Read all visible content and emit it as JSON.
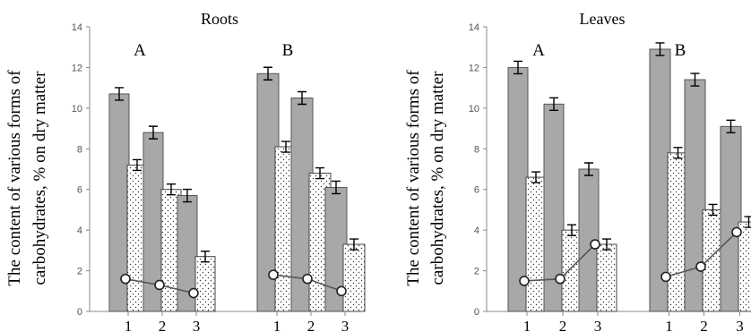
{
  "chart_data": [
    {
      "type": "bar",
      "title": "Roots",
      "ylabel": [
        "The content of various forms of",
        "carbohydrates, % on dry matter"
      ],
      "ylim": [
        0,
        14
      ],
      "yticks": [
        "0",
        "2",
        "4",
        "6",
        "8",
        "10",
        "12",
        "14"
      ],
      "groups": [
        {
          "label": "A",
          "categories": [
            "1",
            "2",
            "3"
          ],
          "gray": [
            10.7,
            8.8,
            5.7
          ],
          "dotted": [
            7.2,
            6.0,
            2.7
          ],
          "line": [
            1.6,
            1.3,
            0.9
          ]
        },
        {
          "label": "B",
          "categories": [
            "1",
            "2",
            "3"
          ],
          "gray": [
            11.7,
            10.5,
            6.1
          ],
          "dotted": [
            8.1,
            6.8,
            3.3
          ],
          "line": [
            1.8,
            1.6,
            1.0
          ]
        }
      ],
      "colors": {
        "gray": "#a8a8a8",
        "dotted": "#ffffff",
        "line": "#555555"
      }
    },
    {
      "type": "bar",
      "title": "Leaves",
      "ylabel": [
        "The content of various forms of",
        "carbohydrates, % on dry matter"
      ],
      "ylim": [
        0,
        14
      ],
      "yticks": [
        "0",
        "2",
        "4",
        "6",
        "8",
        "10",
        "12",
        "14"
      ],
      "groups": [
        {
          "label": "A",
          "categories": [
            "1",
            "2",
            "3"
          ],
          "gray": [
            12.0,
            10.2,
            7.0
          ],
          "dotted": [
            6.6,
            4.0,
            3.3
          ],
          "line": [
            1.5,
            1.6,
            3.3
          ]
        },
        {
          "label": "B",
          "categories": [
            "1",
            "2",
            "3"
          ],
          "gray": [
            12.9,
            11.4,
            9.1
          ],
          "dotted": [
            7.8,
            5.0,
            4.4
          ],
          "line": [
            1.7,
            2.2,
            3.9
          ]
        }
      ],
      "colors": {
        "gray": "#a8a8a8",
        "dotted": "#ffffff",
        "line": "#555555"
      }
    }
  ]
}
